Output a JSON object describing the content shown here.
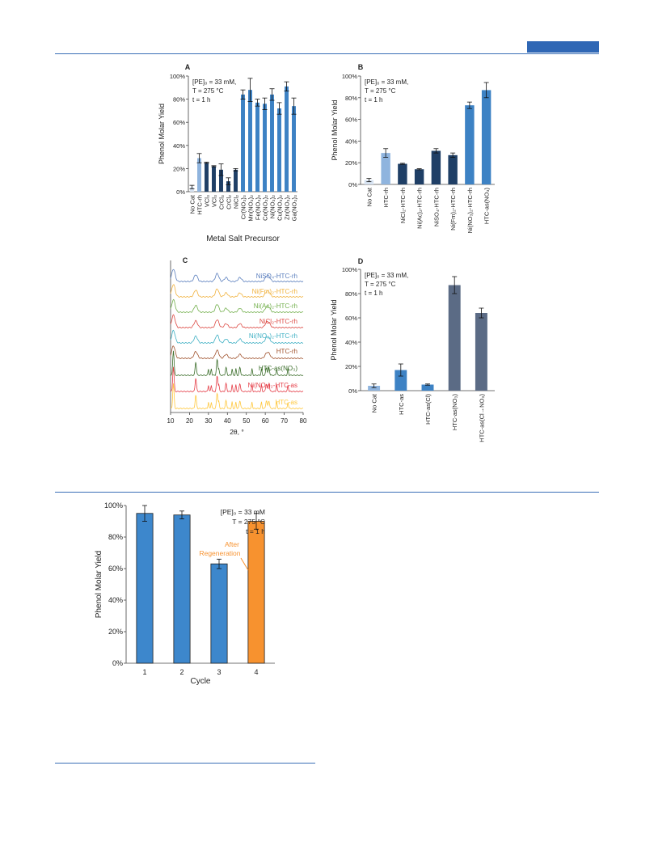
{
  "page": {
    "colors": {
      "rule": "#3b6fb6",
      "tab": "#2f67b5"
    }
  },
  "chart_data": [
    {
      "panel": "A",
      "type": "bar",
      "title": "A",
      "ylabel": "Phenol Molar Yield",
      "xlabel": "Metal Salt Precursor",
      "ylim": [
        0,
        100
      ],
      "yticks": [
        "0%",
        "20%",
        "40%",
        "60%",
        "80%",
        "100%"
      ],
      "annotation": [
        "[PE]₀ = 33 mM,",
        "T = 275 °C",
        "t = 1 h"
      ],
      "categories": [
        "No Cat",
        "HTC-rh",
        "VCl₃",
        "VCl₃",
        "CrCl₃",
        "CrCl₂",
        "NiCl₂",
        "Cr(NO₃)₃",
        "Mn(NO₃)₂",
        "Fe(NO₃)₃",
        "Co(NO₃)₂",
        "Ni(NO₃)₂",
        "Cu(NO₃)₂",
        "Zn(NO₃)₂",
        "Ga(NO₃)₃"
      ],
      "values": [
        4,
        29,
        25,
        22,
        19,
        9,
        19,
        84,
        88,
        77,
        76,
        84,
        72,
        91,
        74
      ],
      "errors": [
        1.5,
        4,
        0.5,
        0.5,
        5,
        3,
        1,
        4,
        10,
        3,
        5,
        5,
        5,
        4,
        7
      ],
      "colors": [
        "#d7e3f2",
        "#8fb4de",
        "#1f3f66",
        "#1f3f66",
        "#1f3f66",
        "#1f3f66",
        "#1f3f66",
        "#3d82c4",
        "#3d82c4",
        "#3d82c4",
        "#3d82c4",
        "#3d82c4",
        "#3d82c4",
        "#3d82c4",
        "#3d82c4"
      ]
    },
    {
      "panel": "B",
      "type": "bar",
      "title": "B",
      "ylabel": "Phenol Molar Yield",
      "ylim": [
        0,
        100
      ],
      "yticks": [
        "0%",
        "20%",
        "40%",
        "60%",
        "80%",
        "100%"
      ],
      "annotation": [
        "[PE]₀ = 33 mM,",
        "T = 275 °C",
        "t = 1 h"
      ],
      "categories": [
        "No Cat",
        "HTC-rh",
        "NiCl₂-HTC-rh",
        "Ni(Ac)₂-HTC-rh",
        "NiSO₄-HTC-rh",
        "Ni(Fm)₂-HTC-rh",
        "Ni(NO₃)₂-HTC-rh",
        "HTC-as(NO₃)"
      ],
      "values": [
        4,
        29,
        19,
        14,
        31,
        27,
        73,
        87
      ],
      "errors": [
        1.5,
        4,
        0.5,
        0.5,
        2,
        2,
        3,
        7
      ],
      "colors": [
        "#d7e3f2",
        "#8fb4de",
        "#1f3f66",
        "#1f3f66",
        "#1f3f66",
        "#1f3f66",
        "#3d82c4",
        "#3d82c4"
      ]
    },
    {
      "panel": "C",
      "type": "line",
      "title": "C",
      "xlabel": "2θ, °",
      "xlim": [
        10,
        80
      ],
      "xticks": [
        10,
        20,
        30,
        40,
        50,
        60,
        70,
        80
      ],
      "series": [
        {
          "name": "NiSO₄-HTC-rh",
          "color": "#5b7fbe"
        },
        {
          "name": "Ni(Fm)₂-HTC-rh",
          "color": "#f1b23e"
        },
        {
          "name": "Ni(Ac)₂-HTC-rh",
          "color": "#74b04e"
        },
        {
          "name": "NiCl₂-HTC-rh",
          "color": "#dd4a44"
        },
        {
          "name": "Ni(NO₃)₂-HTC-rh",
          "color": "#3fb0c4"
        },
        {
          "name": "HTC-rh",
          "color": "#a0522d"
        },
        {
          "name": "HTC-as(NO₃)",
          "color": "#3c6e2b"
        },
        {
          "name": "Ni(NO₃)₂-HTC-as",
          "color": "#e53e48"
        },
        {
          "name": "HTC-as",
          "color": "#ffc83d"
        }
      ],
      "peaks": [
        11.5,
        23.3,
        34.6,
        39.3,
        46.6,
        60.6,
        61.9
      ],
      "weak_peaks": [
        30,
        31.5,
        35.5,
        42.5,
        44.5,
        53,
        58,
        66,
        72
      ]
    },
    {
      "panel": "D",
      "type": "bar",
      "title": "D",
      "ylabel": "Phenol Molar Yield",
      "ylim": [
        0,
        100
      ],
      "yticks": [
        "0%",
        "20%",
        "40%",
        "60%",
        "80%",
        "100%"
      ],
      "annotation": [
        "[PE]₀ = 33 mM,",
        "T = 275 °C",
        "t = 1 h"
      ],
      "categories": [
        "No Cat",
        "HTC-as",
        "HTC-as(Cl)",
        "HTC-as(NO₃)",
        "HTC-as(Cl→NO₃)"
      ],
      "values": [
        4,
        17,
        5,
        87,
        64
      ],
      "errors": [
        1.5,
        5,
        0.5,
        7,
        4
      ],
      "colors": [
        "#8fb4de",
        "#3d82c4",
        "#3d82c4",
        "#5b6b85",
        "#5b6b85"
      ]
    },
    {
      "panel": "E",
      "type": "bar",
      "ylabel": "Phenol Molar Yield",
      "xlabel": "Cycle",
      "ylim": [
        0,
        100
      ],
      "yticks": [
        "0%",
        "20%",
        "40%",
        "60%",
        "80%",
        "100%"
      ],
      "annotation": [
        "[PE]₀ = 33 mM",
        "T = 275 °C",
        "t = 1 h"
      ],
      "callout": [
        "After",
        "Regeneration"
      ],
      "categories": [
        "1",
        "2",
        "3",
        "4"
      ],
      "values": [
        95,
        94,
        63,
        90
      ],
      "errors": [
        5,
        2.5,
        3,
        5
      ],
      "colors": [
        "#3d87cc",
        "#3d87cc",
        "#3d87cc",
        "#f7922f"
      ]
    }
  ]
}
